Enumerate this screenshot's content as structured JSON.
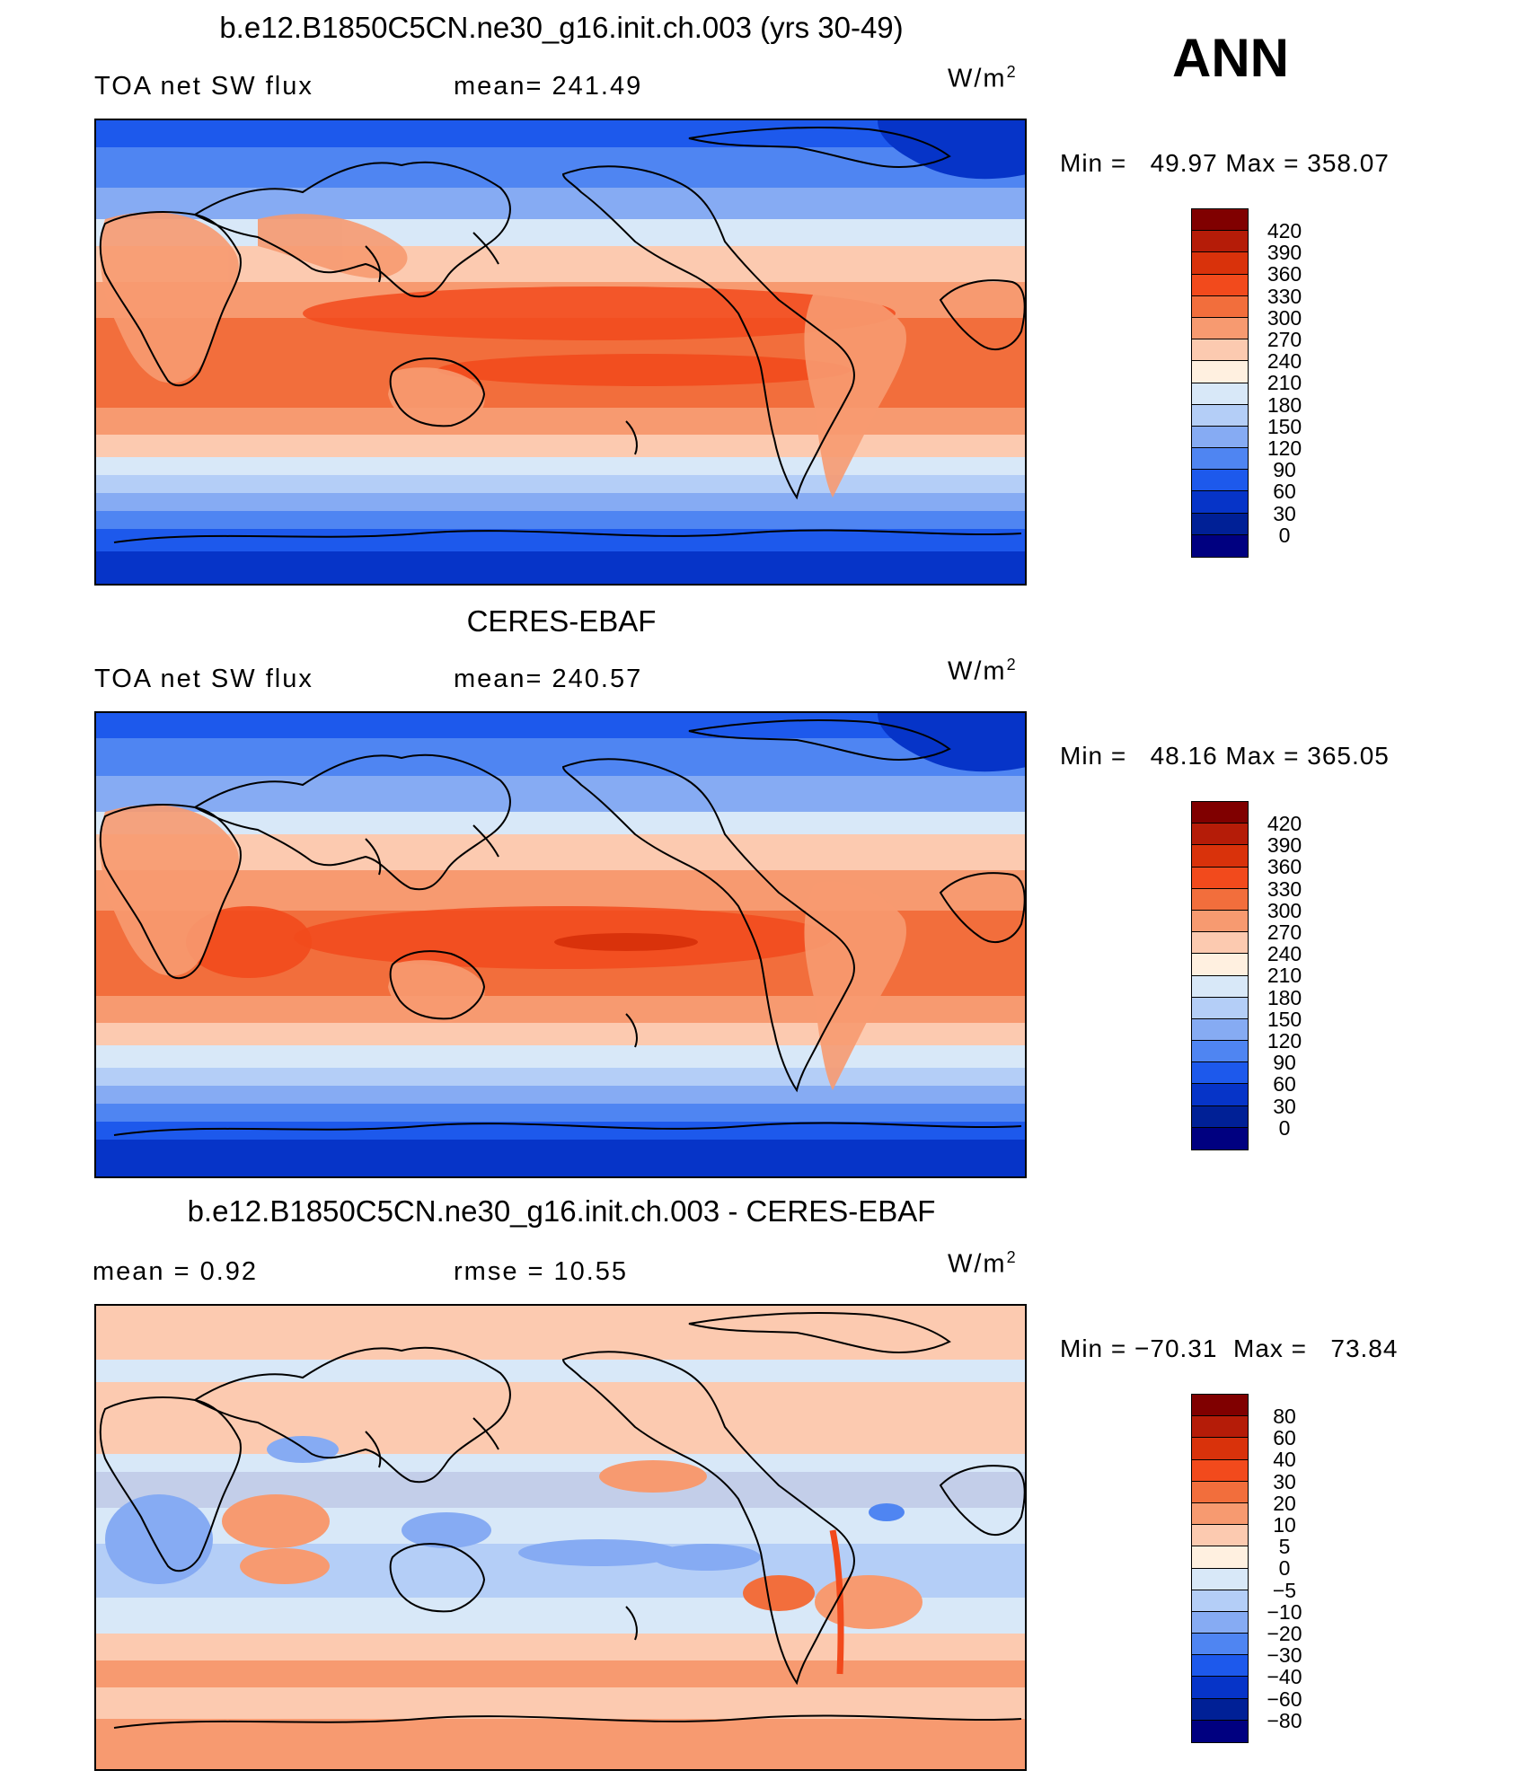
{
  "season": "ANN",
  "units": {
    "base": "W/m",
    "exp": "2"
  },
  "panels": [
    {
      "title": "b.e12.B1850C5CN.ne30_g16.init.ch.003 (yrs 30-49)",
      "left_label": "TOA net SW flux",
      "center_label": "mean= 241.49",
      "minmax": "Min =   49.97 Max = 358.07",
      "scale": "absolute"
    },
    {
      "title": "CERES-EBAF",
      "left_label": "TOA net SW flux",
      "center_label": "mean= 240.57",
      "minmax": "Min =   48.16 Max = 365.05",
      "scale": "absolute"
    },
    {
      "title": "b.e12.B1850C5CN.ne30_g16.init.ch.003 - CERES-EBAF",
      "left_label": "mean =    0.92",
      "center_label": "rmse =   10.55",
      "minmax": "Min = −70.31  Max =   73.84",
      "scale": "difference"
    }
  ],
  "colorbars": {
    "absolute": {
      "levels": [
        "420",
        "390",
        "360",
        "330",
        "300",
        "270",
        "240",
        "210",
        "180",
        "150",
        "120",
        "90",
        "60",
        "30",
        "0"
      ],
      "colors": [
        "#800000",
        "#b51c08",
        "#d9320b",
        "#f24a1c",
        "#f26e3c",
        "#f79a70",
        "#fccab0",
        "#fff0e0",
        "#d8e8f8",
        "#b4cef7",
        "#86abf3",
        "#4f85f2",
        "#1d59ec",
        "#0634c8",
        "#002096",
        "#000080"
      ]
    },
    "difference": {
      "levels": [
        "80",
        "60",
        "40",
        "30",
        "20",
        "10",
        "5",
        "0",
        "−5",
        "−10",
        "−20",
        "−30",
        "−40",
        "−60",
        "−80"
      ],
      "colors": [
        "#800000",
        "#b51c08",
        "#d9320b",
        "#f24a1c",
        "#f26e3c",
        "#f79a70",
        "#fccab0",
        "#fff0e0",
        "#d8e8f8",
        "#b4cef7",
        "#86abf3",
        "#4f85f2",
        "#1d59ec",
        "#0634c8",
        "#002096",
        "#000080"
      ]
    }
  }
}
